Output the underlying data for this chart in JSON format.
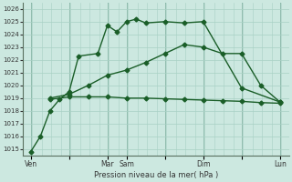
{
  "background_color": "#cce8e0",
  "grid_color": "#a8d0c4",
  "line_color": "#1a5e28",
  "xlabel": "Pression niveau de la mer( hPa )",
  "ylim": [
    1014.5,
    1026.5
  ],
  "yticks": [
    1015,
    1016,
    1017,
    1018,
    1019,
    1020,
    1021,
    1022,
    1023,
    1024,
    1025,
    1026
  ],
  "xtick_labels": [
    "Ven",
    "",
    "Mar",
    "Sam",
    "",
    "Dim",
    "",
    "Lun"
  ],
  "xtick_positions": [
    0,
    24,
    48,
    60,
    84,
    108,
    132,
    156
  ],
  "xlim": [
    -5,
    162
  ],
  "series": [
    {
      "x": [
        0,
        6,
        12,
        18,
        24,
        30,
        42,
        48,
        54,
        60,
        66,
        72,
        84,
        96,
        108,
        132,
        156
      ],
      "y": [
        1014.8,
        1016.0,
        1018.0,
        1018.9,
        1019.5,
        1022.3,
        1022.5,
        1024.7,
        1024.2,
        1025.0,
        1025.2,
        1024.9,
        1025.0,
        1024.9,
        1025.0,
        1019.8,
        1018.7
      ],
      "marker": "D",
      "markersize": 2.5,
      "linewidth": 1.0
    },
    {
      "x": [
        12,
        24,
        36,
        48,
        60,
        72,
        84,
        96,
        108,
        120,
        132,
        144,
        156
      ],
      "y": [
        1019.0,
        1019.3,
        1020.0,
        1020.8,
        1021.2,
        1021.8,
        1022.5,
        1023.2,
        1023.0,
        1022.5,
        1022.5,
        1020.0,
        1018.7
      ],
      "marker": "D",
      "markersize": 2.5,
      "linewidth": 1.0
    },
    {
      "x": [
        12,
        24,
        36,
        48,
        60,
        72,
        84,
        96,
        108,
        120,
        132,
        144,
        156
      ],
      "y": [
        1018.9,
        1019.1,
        1019.1,
        1019.1,
        1019.0,
        1019.0,
        1018.95,
        1018.9,
        1018.85,
        1018.8,
        1018.75,
        1018.65,
        1018.6
      ],
      "marker": "D",
      "markersize": 2.5,
      "linewidth": 1.0
    }
  ]
}
